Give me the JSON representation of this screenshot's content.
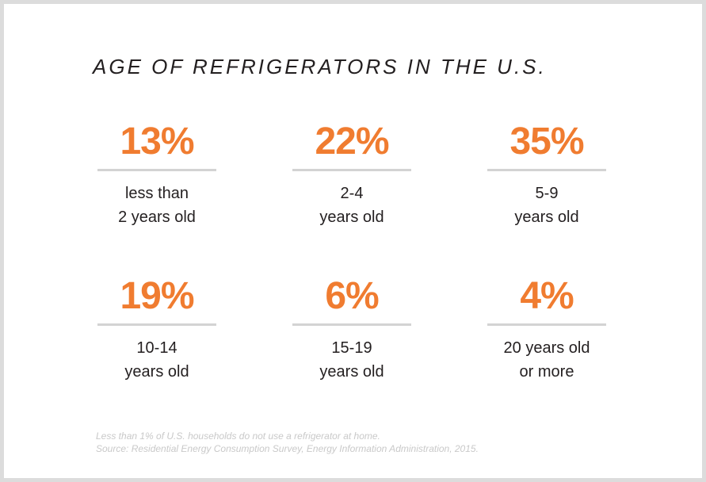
{
  "colors": {
    "background": "#dcdcdc",
    "card": "#ffffff",
    "accent": "#f07c30",
    "text": "#231f20",
    "divider": "#d3d3d3",
    "footnote": "#c9c9c9"
  },
  "chart_data": {
    "type": "table",
    "title": "AGE OF REFRIGERATORS IN THE U.S.",
    "stats": [
      {
        "value": "13%",
        "label_lines": [
          "less than",
          "2 years old"
        ]
      },
      {
        "value": "22%",
        "label_lines": [
          "2-4",
          "years old"
        ]
      },
      {
        "value": "35%",
        "label_lines": [
          "5-9",
          "years old"
        ]
      },
      {
        "value": "19%",
        "label_lines": [
          "10-14",
          "years old"
        ]
      },
      {
        "value": "6%",
        "label_lines": [
          "15-19",
          "years old"
        ]
      },
      {
        "value": "4%",
        "label_lines": [
          "20 years old",
          "or more"
        ]
      }
    ],
    "footnotes": [
      "Less than 1% of U.S. households do not use a refrigerator at home.",
      "Source: Residential Energy Consumption Survey, Energy Information Administration, 2015."
    ]
  }
}
